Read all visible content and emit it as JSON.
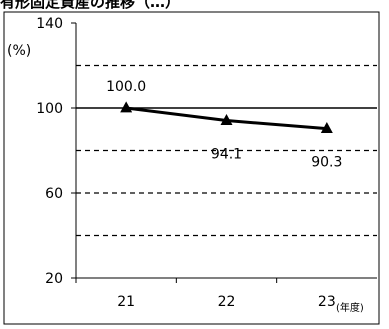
{
  "header_text": "有形固定資産の推移（…）",
  "chart_data": {
    "type": "line",
    "categories": [
      "21",
      "22",
      "23"
    ],
    "series": [
      {
        "values": [
          100.0,
          94.1,
          90.3
        ],
        "labels": [
          "100.0",
          "94.1",
          "90.3"
        ]
      }
    ],
    "ylabel": "(%)",
    "x_unit": "(年度)",
    "ylim": [
      20,
      140
    ],
    "yticks": [
      20,
      60,
      100,
      140
    ],
    "gridlines_dashed": [
      40,
      60,
      80,
      120
    ],
    "reference_line": 100,
    "colors": {
      "line": "#000000",
      "axis": "#000000",
      "grid": "#000000"
    }
  }
}
